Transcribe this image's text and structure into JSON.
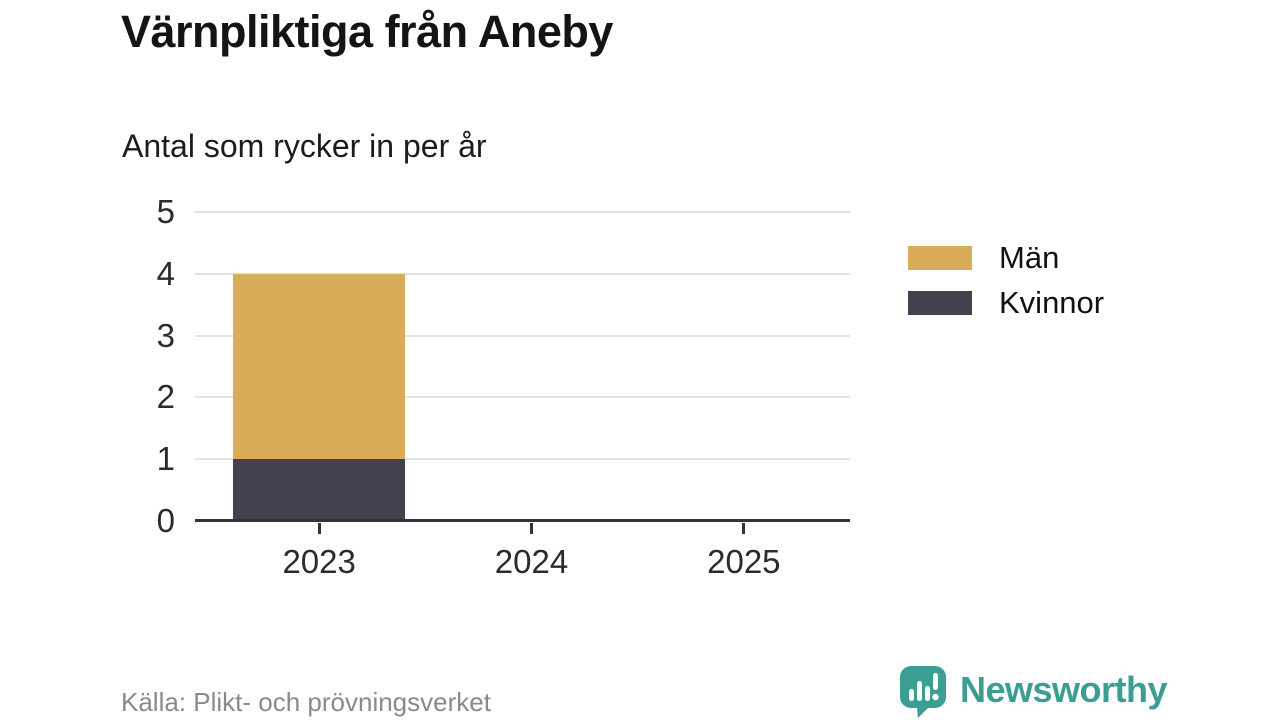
{
  "chart_data": {
    "type": "bar",
    "stacked": true,
    "title": "Värnpliktiga från Aneby",
    "subtitle": "Antal som rycker in per år",
    "categories": [
      "2023",
      "2024",
      "2025"
    ],
    "series": [
      {
        "name": "Män",
        "color": "#D9AC5A",
        "values": [
          3,
          0,
          0
        ]
      },
      {
        "name": "Kvinnor",
        "color": "#42424F",
        "values": [
          1,
          0,
          0
        ]
      }
    ],
    "stack_bottom_to_top": [
      "Kvinnor",
      "Män"
    ],
    "totals": [
      4,
      0,
      0
    ],
    "xlabel": "",
    "ylabel": "",
    "ylim": [
      0,
      5
    ],
    "yticks": [
      0,
      1,
      2,
      3,
      4,
      5
    ],
    "grid": true,
    "legend_position": "right"
  },
  "footer": {
    "source": "Källa: Plikt- och prövningsverket",
    "brand": "Newsworthy"
  },
  "icons": {
    "brand_logo": "bar-chart-speech-bubble-icon"
  },
  "colors": {
    "men": "#D9AC5A",
    "kvinnor": "#42424F",
    "brand_teal": "#3A9E93",
    "axis": "#33333B",
    "gridline": "#E3E3E3",
    "tick_text": "#2b2b2b",
    "source_text": "#8A8A8A",
    "background": "#FFFFFF"
  }
}
